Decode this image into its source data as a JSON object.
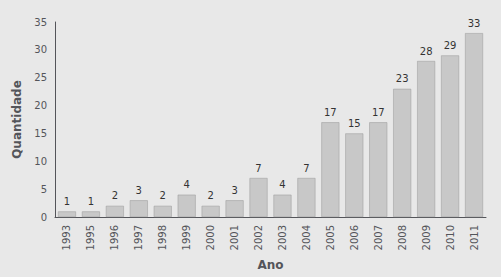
{
  "chart_data": {
    "type": "bar",
    "categories": [
      "1993",
      "1995",
      "1996",
      "1997",
      "1998",
      "1999",
      "2000",
      "2001",
      "2002",
      "2003",
      "2004",
      "2005",
      "2006",
      "2007",
      "2008",
      "2009",
      "2010",
      "2011"
    ],
    "values": [
      1,
      1,
      2,
      3,
      2,
      4,
      2,
      3,
      7,
      4,
      7,
      17,
      15,
      17,
      23,
      28,
      29,
      33
    ],
    "color": "#c8c8c8",
    "xlabel": "Ano",
    "ylabel": "Quantidade",
    "ylim": [
      0,
      35
    ],
    "yticks": [
      0,
      5,
      10,
      15,
      20,
      25,
      30,
      35
    ],
    "grid": false,
    "data_labels": true
  }
}
